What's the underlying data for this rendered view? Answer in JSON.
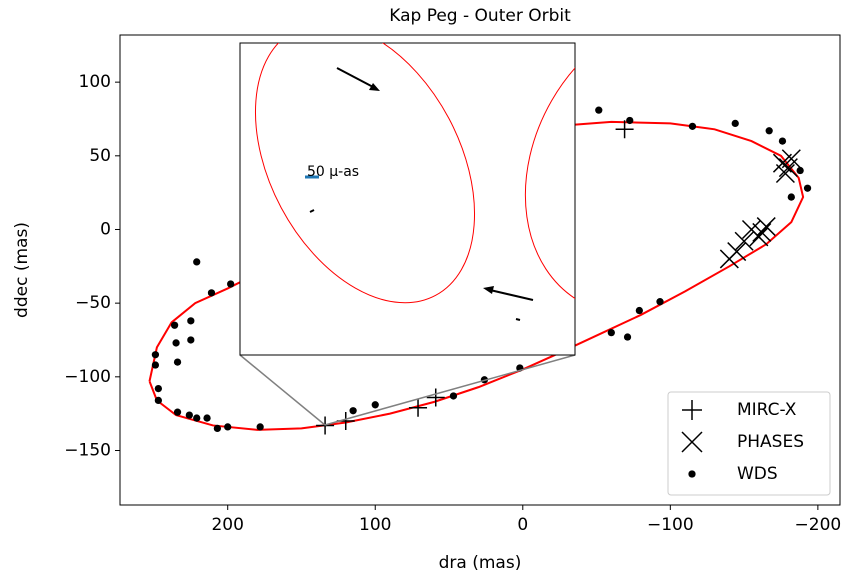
{
  "chart_data": {
    "type": "scatter",
    "title": "Kap Peg - Outer Orbit",
    "xlabel": "dra (mas)",
    "ylabel": "ddec (mas)",
    "xlim": [
      273,
      -215
    ],
    "ylim": [
      -187,
      132
    ],
    "xticks": [
      200,
      100,
      0,
      {
        "value": -100,
        "label": "−100"
      },
      {
        "value": -200,
        "label": "−200"
      }
    ],
    "yticks": [
      100,
      50,
      0,
      {
        "value": -50,
        "label": "−50"
      },
      {
        "value": -100,
        "label": "−100"
      },
      {
        "value": -150,
        "label": "−150"
      }
    ],
    "inset_label": "50 μ-as",
    "legend": "lower right",
    "series": [
      {
        "marker": "line",
        "color": "#ff0000",
        "x": [
          253,
          248,
          238,
          222,
          200,
          170,
          140,
          100,
          60,
          20,
          -20,
          -60,
          -100,
          -130,
          -155,
          -175,
          -187,
          -190,
          -182,
          -165,
          -140,
          -110,
          -80,
          -50,
          -20,
          0,
          30,
          60,
          90,
          120,
          150,
          180,
          210,
          235,
          248,
          253
        ],
        "y": [
          -103,
          -80,
          -63,
          -50,
          -40,
          -25,
          -8,
          15,
          38,
          58,
          70,
          73,
          72,
          68,
          60,
          50,
          35,
          22,
          5,
          -10,
          -25,
          -42,
          -58,
          -72,
          -86,
          -95,
          -107,
          -117,
          -125,
          -131,
          -135,
          -136,
          -133,
          -126,
          -116,
          -103
        ]
      },
      {
        "name": "MIRC-X",
        "marker": "plus",
        "color": "#000000",
        "x": [
          134,
          120,
          71,
          59,
          -69
        ],
        "y": [
          -133,
          -130,
          -121,
          -114,
          68
        ]
      },
      {
        "name": "PHASES",
        "marker": "x",
        "color": "#000000",
        "x": [
          -176,
          -180,
          -182,
          -178,
          -155,
          -160,
          -165,
          -150,
          -145,
          -140,
          -162
        ],
        "y": [
          45,
          42,
          48,
          38,
          0,
          -5,
          2,
          -8,
          -15,
          -20,
          -2
        ]
      },
      {
        "name": "WDS",
        "marker": "dot",
        "color": "#000000",
        "x": [
          -51.5,
          -72.5,
          -115,
          -144,
          -167,
          -176,
          -188,
          -193,
          -182,
          -93,
          -79,
          -60,
          -71,
          2,
          26,
          47,
          100,
          115,
          178,
          200,
          207,
          214,
          221,
          226,
          234,
          247,
          247,
          249,
          249,
          234,
          235,
          236,
          225,
          225,
          211,
          221,
          198
        ],
        "y": [
          81,
          74,
          70,
          72,
          67,
          60,
          40,
          28,
          22,
          -49,
          -55,
          -70,
          -73,
          -94,
          -102,
          -113,
          -119,
          -123,
          -134,
          -134,
          -135,
          -128,
          -128,
          -126,
          -124,
          -116,
          -108,
          -92,
          -85,
          -90,
          -77,
          -65,
          -62,
          -75,
          -43,
          -22,
          -37
        ]
      }
    ]
  }
}
